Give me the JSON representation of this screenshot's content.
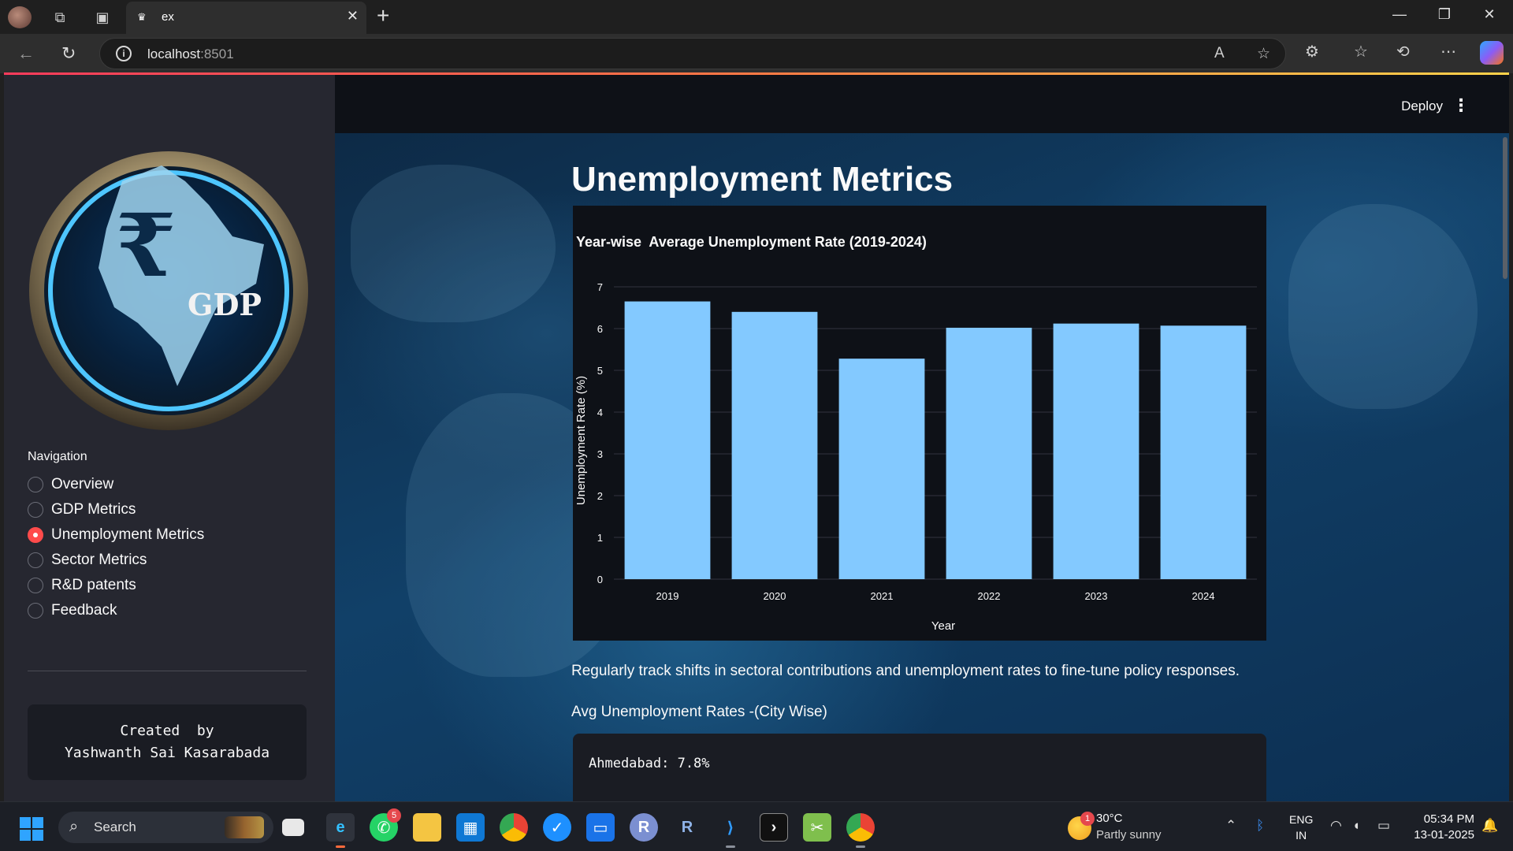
{
  "browser": {
    "tab_title": "ex",
    "url_host": "localhost",
    "url_port": ":8501"
  },
  "header": {
    "deploy_label": "Deploy",
    "menu_label": "⋮"
  },
  "sidebar": {
    "nav_title": "Navigation",
    "items": [
      {
        "label": "Overview",
        "selected": false
      },
      {
        "label": "GDP Metrics",
        "selected": false
      },
      {
        "label": "Unemployment Metrics",
        "selected": true
      },
      {
        "label": "Sector Metrics",
        "selected": false
      },
      {
        "label": "R&D patents",
        "selected": false
      },
      {
        "label": "Feedback",
        "selected": false
      }
    ],
    "credit": "Created  by\nYashwanth Sai Kasarabada",
    "logo_text": "GDP",
    "logo_symbol": "₹"
  },
  "main": {
    "title": "Unemployment Metrics",
    "paragraph": "Regularly track shifts in sectoral contributions and unemployment rates to fine-tune policy responses.",
    "subheading": "Avg Unemployment Rates -(City Wise)",
    "code_line": "Ahmedabad: 7.8%"
  },
  "chart_data": {
    "type": "bar",
    "title": "Year-wise  Average Unemployment Rate (2019-2024)",
    "xlabel": "Year",
    "ylabel": "Unemployment Rate (%)",
    "categories": [
      "2019",
      "2020",
      "2021",
      "2022",
      "2023",
      "2024"
    ],
    "values": [
      6.65,
      6.4,
      5.28,
      6.02,
      6.12,
      6.07
    ],
    "ylim": [
      0,
      7
    ],
    "yticks": [
      0,
      1,
      2,
      3,
      4,
      5,
      6,
      7
    ],
    "bar_color": "#83c9ff",
    "grid": true
  },
  "taskbar": {
    "search_label": "Search",
    "whatsapp_badge": "5",
    "weather_badge": "1",
    "weather_temp": "30°C",
    "weather_desc": "Partly sunny",
    "lang_1": "ENG",
    "lang_2": "IN",
    "time": "05:34 PM",
    "date": "13-01-2025"
  },
  "colors": {
    "accent": "#ff4b4b",
    "sidebar_bg": "#262730",
    "app_bg": "#0e1117",
    "bar": "#83c9ff"
  }
}
